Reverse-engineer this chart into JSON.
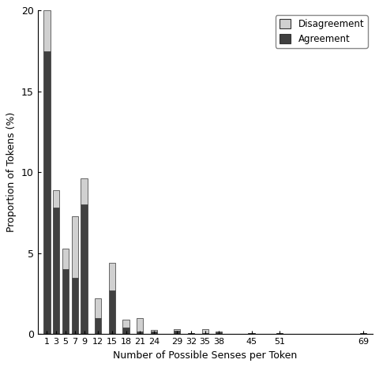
{
  "x_labels": [
    1,
    3,
    5,
    7,
    9,
    12,
    15,
    18,
    21,
    24,
    29,
    32,
    35,
    38,
    45,
    51,
    69
  ],
  "agreement": [
    17.5,
    7.8,
    4.0,
    3.5,
    8.0,
    1.0,
    2.7,
    0.4,
    0.15,
    0.15,
    0.2,
    0.07,
    0.05,
    0.12,
    0.05,
    0.05,
    0.07
  ],
  "disagreement": [
    2.5,
    1.1,
    1.3,
    3.8,
    1.6,
    1.2,
    1.7,
    0.5,
    0.85,
    0.1,
    0.1,
    0.0,
    0.25,
    0.05,
    0.0,
    0.0,
    0.0
  ],
  "agreement_color": "#404040",
  "disagreement_color": "#d0d0d0",
  "edge_color": "#333333",
  "ylabel": "Proportion of Tokens (%)",
  "xlabel": "Number of Possible Senses per Token",
  "ylim": [
    0,
    20
  ],
  "yticks": [
    0,
    5,
    10,
    15,
    20
  ],
  "legend_labels": [
    "Disagreement",
    "Agreement"
  ],
  "legend_colors": [
    "#d0d0d0",
    "#404040"
  ],
  "bar_width": 1.4,
  "background_color": "#ffffff"
}
